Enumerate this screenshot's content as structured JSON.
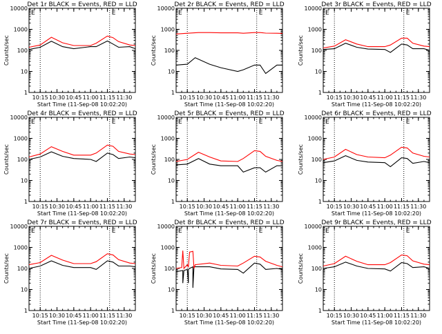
{
  "figure": {
    "x_ticks": [
      "10:15",
      "10:30",
      "10:45",
      "11:00",
      "11:15",
      "11:30"
    ],
    "xlabel": "Start Time (11-Sep-08 10:02:20)",
    "ylabel": "Counts/sec",
    "y_ticks": [
      "1",
      "10",
      "100",
      "1000",
      "10000"
    ],
    "marker": "E",
    "colors": {
      "events": "#000000",
      "lld": "#ff0000",
      "axis": "#000000"
    }
  },
  "chart_data": [
    {
      "title": "Det 1r BLACK = Events, RED = LLD",
      "type": "line",
      "yscale": "log",
      "ylim": [
        1,
        10000
      ],
      "xlim": [
        "10:05",
        "11:40"
      ],
      "series": [
        {
          "name": "BLACK",
          "color": "#000000",
          "x": [
            "10:05",
            "10:15",
            "10:25",
            "10:35",
            "10:45",
            "11:00",
            "11:05",
            "11:15",
            "11:20",
            "11:25",
            "11:35",
            "11:40"
          ],
          "values": [
            110,
            140,
            270,
            150,
            120,
            150,
            150,
            280,
            200,
            140,
            150,
            120
          ]
        },
        {
          "name": "RED",
          "color": "#ff0000",
          "x": [
            "10:05",
            "10:15",
            "10:25",
            "10:35",
            "10:45",
            "11:00",
            "11:05",
            "11:15",
            "11:20",
            "11:25",
            "11:35",
            "11:40"
          ],
          "values": [
            140,
            180,
            420,
            230,
            170,
            170,
            220,
            480,
            400,
            260,
            180,
            170
          ]
        }
      ]
    },
    {
      "title": "Det 2r BLACK = Events, RED = LLD",
      "type": "line",
      "yscale": "log",
      "ylim": [
        1,
        10000
      ],
      "xlim": [
        "10:05",
        "11:40"
      ],
      "series": [
        {
          "name": "BLACK",
          "color": "#000000",
          "x": [
            "10:05",
            "10:15",
            "10:22",
            "10:35",
            "10:45",
            "11:00",
            "11:05",
            "11:15",
            "11:20",
            "11:25",
            "11:35",
            "11:40"
          ],
          "values": [
            20,
            22,
            45,
            22,
            15,
            10,
            12,
            20,
            20,
            8,
            20,
            20
          ]
        },
        {
          "name": "RED",
          "color": "#ff0000",
          "x": [
            "10:05",
            "10:15",
            "10:25",
            "10:35",
            "10:45",
            "11:00",
            "11:05",
            "11:15",
            "11:20",
            "11:25",
            "11:35",
            "11:40"
          ],
          "values": [
            600,
            650,
            700,
            700,
            680,
            680,
            650,
            700,
            700,
            660,
            650,
            640
          ]
        }
      ]
    },
    {
      "title": "Det 3r BLACK = Events, RED = LLD",
      "type": "line",
      "yscale": "log",
      "ylim": [
        1,
        10000
      ],
      "xlim": [
        "10:05",
        "11:40"
      ],
      "series": [
        {
          "name": "BLACK",
          "color": "#000000",
          "x": [
            "10:05",
            "10:15",
            "10:25",
            "10:35",
            "10:45",
            "11:00",
            "11:05",
            "11:15",
            "11:20",
            "11:25",
            "11:35",
            "11:40"
          ],
          "values": [
            110,
            120,
            220,
            140,
            115,
            110,
            80,
            200,
            180,
            120,
            120,
            100
          ]
        },
        {
          "name": "RED",
          "color": "#ff0000",
          "x": [
            "10:05",
            "10:15",
            "10:25",
            "10:35",
            "10:45",
            "11:00",
            "11:05",
            "11:15",
            "11:20",
            "11:25",
            "11:35",
            "11:40"
          ],
          "values": [
            130,
            160,
            320,
            200,
            150,
            150,
            180,
            380,
            380,
            220,
            160,
            150
          ]
        }
      ]
    },
    {
      "title": "Det 4r BLACK = Events, RED = LLD",
      "type": "line",
      "yscale": "log",
      "ylim": [
        1,
        10000
      ],
      "xlim": [
        "10:05",
        "11:40"
      ],
      "series": [
        {
          "name": "BLACK",
          "color": "#000000",
          "x": [
            "10:05",
            "10:15",
            "10:25",
            "10:35",
            "10:45",
            "11:00",
            "11:05",
            "11:15",
            "11:20",
            "11:25",
            "11:35",
            "11:40"
          ],
          "values": [
            100,
            130,
            230,
            140,
            110,
            100,
            80,
            200,
            170,
            110,
            130,
            120
          ]
        },
        {
          "name": "RED",
          "color": "#ff0000",
          "x": [
            "10:05",
            "10:15",
            "10:25",
            "10:35",
            "10:45",
            "11:00",
            "11:05",
            "11:15",
            "11:20",
            "11:25",
            "11:35",
            "11:40"
          ],
          "values": [
            130,
            180,
            400,
            240,
            160,
            160,
            200,
            480,
            420,
            240,
            180,
            170
          ]
        }
      ]
    },
    {
      "title": "Det 5r BLACK = Events, RED = LLD",
      "type": "line",
      "yscale": "log",
      "ylim": [
        1,
        10000
      ],
      "xlim": [
        "10:05",
        "11:40"
      ],
      "series": [
        {
          "name": "BLACK",
          "color": "#000000",
          "x": [
            "10:05",
            "10:15",
            "10:25",
            "10:35",
            "10:45",
            "11:00",
            "11:05",
            "11:15",
            "11:20",
            "11:25",
            "11:35",
            "11:40"
          ],
          "values": [
            55,
            60,
            110,
            60,
            50,
            50,
            25,
            40,
            40,
            25,
            50,
            50
          ]
        },
        {
          "name": "RED",
          "color": "#ff0000",
          "x": [
            "10:05",
            "10:15",
            "10:25",
            "10:35",
            "10:45",
            "11:00",
            "11:05",
            "11:15",
            "11:20",
            "11:25",
            "11:35",
            "11:40"
          ],
          "values": [
            80,
            100,
            220,
            130,
            85,
            80,
            110,
            260,
            240,
            140,
            90,
            80
          ]
        }
      ]
    },
    {
      "title": "Det 6r BLACK = Events, RED = LLD",
      "type": "line",
      "yscale": "log",
      "ylim": [
        1,
        10000
      ],
      "xlim": [
        "10:05",
        "11:40"
      ],
      "series": [
        {
          "name": "BLACK",
          "color": "#000000",
          "x": [
            "10:05",
            "10:15",
            "10:25",
            "10:35",
            "10:45",
            "11:00",
            "11:05",
            "11:15",
            "11:20",
            "11:25",
            "11:35",
            "11:40"
          ],
          "values": [
            70,
            85,
            150,
            90,
            75,
            70,
            45,
            120,
            110,
            65,
            80,
            70
          ]
        },
        {
          "name": "RED",
          "color": "#ff0000",
          "x": [
            "10:05",
            "10:15",
            "10:25",
            "10:35",
            "10:45",
            "11:00",
            "11:05",
            "11:15",
            "11:20",
            "11:25",
            "11:35",
            "11:40"
          ],
          "values": [
            100,
            130,
            300,
            170,
            130,
            120,
            160,
            380,
            350,
            200,
            140,
            130
          ]
        }
      ]
    },
    {
      "title": "Det 7r BLACK = Events, RED = LLD",
      "type": "line",
      "yscale": "log",
      "ylim": [
        1,
        10000
      ],
      "xlim": [
        "10:05",
        "11:40"
      ],
      "series": [
        {
          "name": "BLACK",
          "color": "#000000",
          "x": [
            "10:05",
            "10:15",
            "10:25",
            "10:35",
            "10:45",
            "11:00",
            "11:05",
            "11:15",
            "11:20",
            "11:25",
            "11:35",
            "11:40"
          ],
          "values": [
            100,
            130,
            230,
            140,
            110,
            110,
            90,
            230,
            200,
            130,
            130,
            120
          ]
        },
        {
          "name": "RED",
          "color": "#ff0000",
          "x": [
            "10:05",
            "10:15",
            "10:25",
            "10:35",
            "10:45",
            "11:00",
            "11:05",
            "11:15",
            "11:20",
            "11:25",
            "11:35",
            "11:40"
          ],
          "values": [
            150,
            190,
            420,
            250,
            170,
            170,
            210,
            500,
            440,
            260,
            180,
            170
          ]
        }
      ]
    },
    {
      "title": "Det 8r BLACK = Events, RED = LLD",
      "type": "line",
      "yscale": "log",
      "ylim": [
        1,
        10000
      ],
      "xlim": [
        "10:05",
        "11:40"
      ],
      "series": [
        {
          "name": "BLACK",
          "color": "#000000",
          "x": [
            "10:05",
            "10:11",
            "10:11",
            "10:12",
            "10:15",
            "10:16",
            "10:16",
            "10:17",
            "10:20",
            "10:20",
            "10:21",
            "10:35",
            "10:45",
            "11:00",
            "11:05",
            "11:15",
            "11:20",
            "11:25",
            "11:35",
            "11:40"
          ],
          "values": [
            70,
            80,
            20,
            80,
            90,
            20,
            90,
            100,
            120,
            12,
            120,
            120,
            95,
            90,
            60,
            180,
            160,
            90,
            100,
            90
          ]
        },
        {
          "name": "RED",
          "color": "#ff0000",
          "x": [
            "10:05",
            "10:10",
            "10:11",
            "10:12",
            "10:15",
            "10:16",
            "10:17",
            "10:20",
            "10:21",
            "10:22",
            "10:35",
            "10:45",
            "11:00",
            "11:05",
            "11:15",
            "11:20",
            "11:25",
            "11:35",
            "11:40"
          ],
          "values": [
            100,
            110,
            700,
            100,
            150,
            120,
            600,
            650,
            100,
            150,
            180,
            140,
            130,
            180,
            380,
            350,
            220,
            140,
            120
          ]
        }
      ]
    },
    {
      "title": "Det 9r BLACK = Events, RED = LLD",
      "type": "line",
      "yscale": "log",
      "ylim": [
        1,
        10000
      ],
      "xlim": [
        "10:05",
        "11:40"
      ],
      "series": [
        {
          "name": "BLACK",
          "color": "#000000",
          "x": [
            "10:05",
            "10:15",
            "10:25",
            "10:35",
            "10:45",
            "11:00",
            "11:05",
            "11:15",
            "11:20",
            "11:25",
            "11:35",
            "11:40"
          ],
          "values": [
            100,
            120,
            200,
            130,
            100,
            95,
            75,
            190,
            170,
            110,
            120,
            100
          ]
        },
        {
          "name": "RED",
          "color": "#ff0000",
          "x": [
            "10:05",
            "10:15",
            "10:25",
            "10:35",
            "10:45",
            "11:00",
            "11:05",
            "11:15",
            "11:20",
            "11:25",
            "11:35",
            "11:40"
          ],
          "values": [
            130,
            170,
            380,
            220,
            150,
            150,
            190,
            440,
            400,
            230,
            160,
            150
          ]
        }
      ]
    }
  ]
}
